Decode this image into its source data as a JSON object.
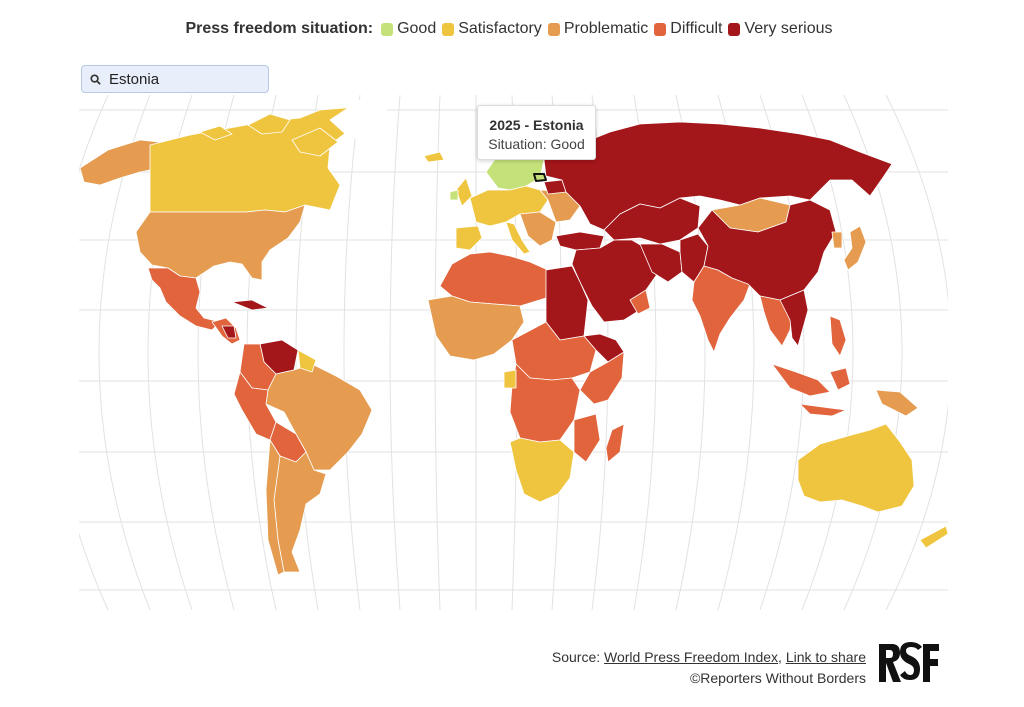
{
  "legend": {
    "title": "Press freedom situation:",
    "items": [
      {
        "label": "Good",
        "color": "#c5e17a"
      },
      {
        "label": "Satisfactory",
        "color": "#efc53f"
      },
      {
        "label": "Problematic",
        "color": "#e59c50"
      },
      {
        "label": "Difficult",
        "color": "#e1643c"
      },
      {
        "label": "Very serious",
        "color": "#a3161a"
      }
    ]
  },
  "search": {
    "value": "Estonia",
    "icon": "search-icon"
  },
  "tooltip": {
    "title": "2025 - Estonia",
    "situation": "Situation: Good"
  },
  "footer": {
    "source_prefix": "Source:",
    "source_link": "World Press Freedom Index",
    "separator": ",",
    "share_link": "Link to share",
    "copyright": "©Reporters Without Borders"
  },
  "logo": {
    "text": "RSF"
  }
}
